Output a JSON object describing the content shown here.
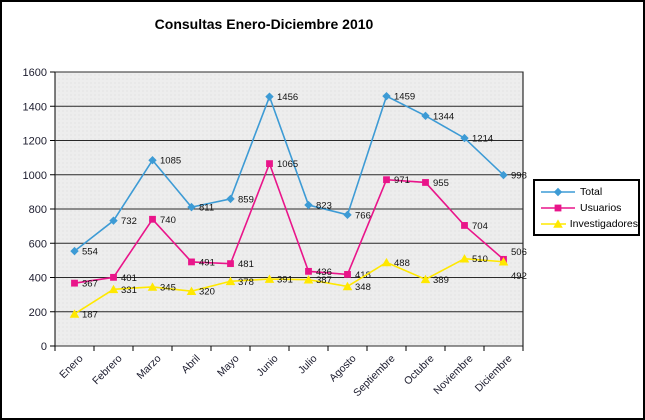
{
  "chart_data": {
    "type": "line",
    "title": "Consultas Enero-Diciembre 2010",
    "categories": [
      "Enero",
      "Febrero",
      "Marzo",
      "Abril",
      "Mayo",
      "Junio",
      "Julio",
      "Agosto",
      "Septiembre",
      "Octubre",
      "Noviembre",
      "Diciembre"
    ],
    "series": [
      {
        "name": "Total",
        "marker": "diamond",
        "color": "#3D9BD5",
        "values": [
          554,
          732,
          1085,
          811,
          859,
          1456,
          823,
          766,
          1459,
          1344,
          1214,
          998
        ]
      },
      {
        "name": "Usuarios",
        "marker": "square",
        "color": "#E9158A",
        "values": [
          367,
          401,
          740,
          491,
          481,
          1065,
          436,
          418,
          971,
          955,
          704,
          506
        ]
      },
      {
        "name": "Investigadores",
        "marker": "triangle",
        "color": "#FFE800",
        "values": [
          187,
          331,
          345,
          320,
          378,
          391,
          387,
          348,
          488,
          389,
          510,
          492
        ]
      }
    ],
    "ylim": [
      0,
      1600
    ],
    "ytick_interval": 200,
    "ytick_labels": [
      "0",
      "200",
      "400",
      "600",
      "800",
      "1000",
      "1200",
      "1400",
      "1600"
    ],
    "grid": true,
    "data_labels": true,
    "legend_position": "right",
    "plot_bg": "#EDEDED",
    "grid_color": "#2a2a2a",
    "axis_color": "#000000",
    "label_dy_overrides": [
      {
        "series": 1,
        "index": 11,
        "dy": -8
      },
      {
        "series": 2,
        "index": 11,
        "dy": 14
      }
    ]
  }
}
